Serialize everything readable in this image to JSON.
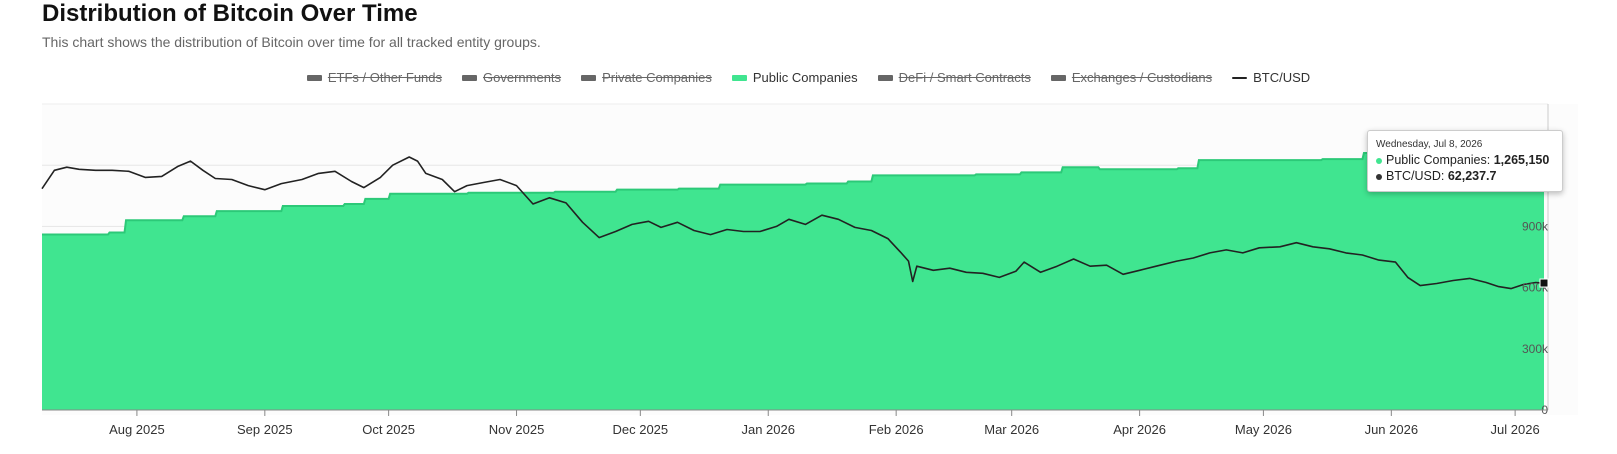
{
  "header": {
    "title": "Distribution of Bitcoin Over Time",
    "subtitle": "This chart shows the distribution of Bitcoin over time for all tracked entity groups."
  },
  "legend": [
    {
      "label": "ETFs / Other Funds",
      "color": "#666666",
      "active": false,
      "kind": "area"
    },
    {
      "label": "Governments",
      "color": "#666666",
      "active": false,
      "kind": "area"
    },
    {
      "label": "Private Companies",
      "color": "#666666",
      "active": false,
      "kind": "area"
    },
    {
      "label": "Public Companies",
      "color": "#40e590",
      "active": true,
      "kind": "area"
    },
    {
      "label": "DeFi / Smart Contracts",
      "color": "#666666",
      "active": false,
      "kind": "area"
    },
    {
      "label": "Exchanges / Custodians",
      "color": "#666666",
      "active": false,
      "kind": "area"
    },
    {
      "label": "BTC/USD",
      "color": "#222222",
      "active": true,
      "kind": "line"
    }
  ],
  "tooltip": {
    "date": "Wednesday, Jul 8, 2026",
    "rows": [
      {
        "label": "Public Companies:",
        "value": "1,265,150",
        "color": "#40e590"
      },
      {
        "label": "BTC/USD:",
        "value": "62,237.7",
        "color": "#333333"
      }
    ]
  },
  "chart_data": {
    "type": "area",
    "title": "Distribution of Bitcoin Over Time",
    "x_ticks": [
      "Aug 2025",
      "Sep 2025",
      "Oct 2025",
      "Nov 2025",
      "Dec 2025",
      "Jan 2026",
      "Feb 2026",
      "Mar 2026",
      "Apr 2026",
      "May 2026",
      "Jun 2026",
      "Jul 2026"
    ],
    "xlim": [
      "2025-07-09",
      "2026-07-08"
    ],
    "y_ticks": [
      "0",
      "300k",
      "600k",
      "900k",
      "1,200k"
    ],
    "ylim": [
      0,
      1500000
    ],
    "grid": true,
    "legend_position": "top-center",
    "series": [
      {
        "name": "Public Companies",
        "type": "area",
        "color": "#40e590",
        "points": [
          [
            "2025-07-09",
            860000
          ],
          [
            "2025-07-25",
            870000
          ],
          [
            "2025-07-29",
            930000
          ],
          [
            "2025-08-12",
            950000
          ],
          [
            "2025-08-20",
            975000
          ],
          [
            "2025-09-05",
            1000000
          ],
          [
            "2025-09-20",
            1010000
          ],
          [
            "2025-09-25",
            1035000
          ],
          [
            "2025-10-01",
            1060000
          ],
          [
            "2025-10-20",
            1065000
          ],
          [
            "2025-11-10",
            1070000
          ],
          [
            "2025-11-25",
            1080000
          ],
          [
            "2025-12-10",
            1085000
          ],
          [
            "2025-12-20",
            1105000
          ],
          [
            "2026-01-10",
            1110000
          ],
          [
            "2026-01-20",
            1120000
          ],
          [
            "2026-01-26",
            1150000
          ],
          [
            "2026-02-20",
            1155000
          ],
          [
            "2026-03-03",
            1165000
          ],
          [
            "2026-03-13",
            1190000
          ],
          [
            "2026-03-22",
            1180000
          ],
          [
            "2026-04-10",
            1185000
          ],
          [
            "2026-04-15",
            1225000
          ],
          [
            "2026-05-15",
            1230000
          ],
          [
            "2026-05-25",
            1260000
          ],
          [
            "2026-06-10",
            1265000
          ],
          [
            "2026-07-08",
            1265150
          ]
        ]
      },
      {
        "name": "BTC/USD",
        "type": "line",
        "color": "#222222",
        "points": [
          [
            "2025-07-09",
            108500
          ],
          [
            "2025-07-12",
            117500
          ],
          [
            "2025-07-15",
            119000
          ],
          [
            "2025-07-18",
            118000
          ],
          [
            "2025-07-22",
            117500
          ],
          [
            "2025-07-26",
            117500
          ],
          [
            "2025-07-30",
            117000
          ],
          [
            "2025-08-03",
            114000
          ],
          [
            "2025-08-07",
            114500
          ],
          [
            "2025-08-11",
            119500
          ],
          [
            "2025-08-14",
            122000
          ],
          [
            "2025-08-17",
            117500
          ],
          [
            "2025-08-20",
            113500
          ],
          [
            "2025-08-24",
            113000
          ],
          [
            "2025-08-28",
            110000
          ],
          [
            "2025-09-01",
            108000
          ],
          [
            "2025-09-05",
            111000
          ],
          [
            "2025-09-10",
            113000
          ],
          [
            "2025-09-14",
            116000
          ],
          [
            "2025-09-18",
            117000
          ],
          [
            "2025-09-22",
            112000
          ],
          [
            "2025-09-25",
            109000
          ],
          [
            "2025-09-29",
            114000
          ],
          [
            "2025-10-02",
            120000
          ],
          [
            "2025-10-06",
            124000
          ],
          [
            "2025-10-08",
            122000
          ],
          [
            "2025-10-10",
            116000
          ],
          [
            "2025-10-14",
            113000
          ],
          [
            "2025-10-17",
            107000
          ],
          [
            "2025-10-20",
            110000
          ],
          [
            "2025-10-24",
            111500
          ],
          [
            "2025-10-28",
            113000
          ],
          [
            "2025-11-01",
            110000
          ],
          [
            "2025-11-05",
            101000
          ],
          [
            "2025-11-09",
            104000
          ],
          [
            "2025-11-13",
            101500
          ],
          [
            "2025-11-17",
            92000
          ],
          [
            "2025-11-21",
            84500
          ],
          [
            "2025-11-25",
            87500
          ],
          [
            "2025-11-29",
            91000
          ],
          [
            "2025-12-03",
            92500
          ],
          [
            "2025-12-06",
            89500
          ],
          [
            "2025-12-10",
            92000
          ],
          [
            "2025-12-14",
            88000
          ],
          [
            "2025-12-18",
            86000
          ],
          [
            "2025-12-22",
            88500
          ],
          [
            "2025-12-26",
            87500
          ],
          [
            "2025-12-30",
            87500
          ],
          [
            "2026-01-03",
            90000
          ],
          [
            "2026-01-06",
            93500
          ],
          [
            "2026-01-10",
            91000
          ],
          [
            "2026-01-14",
            95500
          ],
          [
            "2026-01-18",
            93500
          ],
          [
            "2026-01-22",
            89500
          ],
          [
            "2026-01-26",
            88000
          ],
          [
            "2026-01-30",
            84000
          ],
          [
            "2026-02-02",
            77500
          ],
          [
            "2026-02-04",
            73000
          ],
          [
            "2026-02-05",
            63000
          ],
          [
            "2026-02-06",
            70500
          ],
          [
            "2026-02-10",
            68500
          ],
          [
            "2026-02-14",
            69500
          ],
          [
            "2026-02-18",
            67500
          ],
          [
            "2026-02-22",
            67000
          ],
          [
            "2026-02-26",
            65000
          ],
          [
            "2026-03-02",
            68000
          ],
          [
            "2026-03-04",
            72500
          ],
          [
            "2026-03-08",
            67500
          ],
          [
            "2026-03-12",
            70500
          ],
          [
            "2026-03-16",
            74000
          ],
          [
            "2026-03-20",
            70500
          ],
          [
            "2026-03-24",
            71000
          ],
          [
            "2026-03-28",
            66500
          ],
          [
            "2026-04-01",
            68500
          ],
          [
            "2026-04-05",
            70500
          ],
          [
            "2026-04-10",
            73000
          ],
          [
            "2026-04-14",
            74500
          ],
          [
            "2026-04-18",
            77000
          ],
          [
            "2026-04-22",
            78500
          ],
          [
            "2026-04-26",
            77000
          ],
          [
            "2026-04-30",
            79500
          ],
          [
            "2026-05-05",
            80000
          ],
          [
            "2026-05-09",
            82000
          ],
          [
            "2026-05-13",
            80000
          ],
          [
            "2026-05-17",
            79000
          ],
          [
            "2026-05-21",
            77000
          ],
          [
            "2026-05-25",
            76000
          ],
          [
            "2026-05-29",
            73500
          ],
          [
            "2026-06-02",
            72500
          ],
          [
            "2026-06-05",
            65000
          ],
          [
            "2026-06-08",
            61000
          ],
          [
            "2026-06-12",
            62000
          ],
          [
            "2026-06-16",
            63500
          ],
          [
            "2026-06-20",
            64500
          ],
          [
            "2026-06-24",
            62500
          ],
          [
            "2026-06-27",
            60500
          ],
          [
            "2026-06-30",
            59500
          ],
          [
            "2026-07-03",
            61500
          ],
          [
            "2026-07-06",
            62500
          ],
          [
            "2026-07-08",
            62237.7
          ]
        ]
      }
    ]
  }
}
